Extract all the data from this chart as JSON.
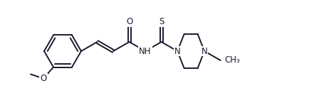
{
  "bg_color": "#ffffff",
  "line_color": "#1a1a2e",
  "line_width": 1.4,
  "font_size": 8.5,
  "figsize": [
    4.55,
    1.38
  ],
  "dpi": 100,
  "atoms": {
    "O_label": "O",
    "S_label": "S",
    "NH_label": "NH",
    "N1_label": "N",
    "N2_label": "N",
    "OCH3_label": "O",
    "methyl_label": "CH₃"
  }
}
